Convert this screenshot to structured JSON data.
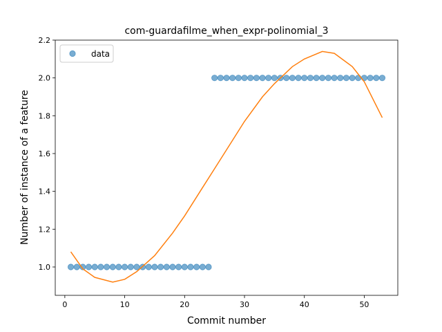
{
  "chart_data": {
    "type": "scatter",
    "title": "com-guardafilme_when_expr-polinomial_3",
    "xlabel": "Commit number",
    "ylabel": "Number of instance of a feature",
    "xlim": [
      -1.6,
      55.6
    ],
    "ylim": [
      0.85,
      2.2
    ],
    "xticks": [
      0,
      10,
      20,
      30,
      40,
      50
    ],
    "yticks": [
      1.0,
      1.2,
      1.4,
      1.6,
      1.8,
      2.0,
      2.2
    ],
    "xtick_labels": [
      "0",
      "10",
      "20",
      "30",
      "40",
      "50"
    ],
    "ytick_labels": [
      "1.0",
      "1.2",
      "1.4",
      "1.6",
      "1.8",
      "2.0",
      "2.2"
    ],
    "grid": false,
    "legend": {
      "placement": "top-left",
      "entries": [
        "data"
      ]
    },
    "series": [
      {
        "name": "data",
        "kind": "scatter",
        "color": "#1f77b4",
        "x": [
          1,
          2,
          3,
          4,
          5,
          6,
          7,
          8,
          9,
          10,
          11,
          12,
          13,
          14,
          15,
          16,
          17,
          18,
          19,
          20,
          21,
          22,
          23,
          24,
          25,
          26,
          27,
          28,
          29,
          30,
          31,
          32,
          33,
          34,
          35,
          36,
          37,
          38,
          39,
          40,
          41,
          42,
          43,
          44,
          45,
          46,
          47,
          48,
          49,
          50,
          51,
          52,
          53
        ],
        "y": [
          1,
          1,
          1,
          1,
          1,
          1,
          1,
          1,
          1,
          1,
          1,
          1,
          1,
          1,
          1,
          1,
          1,
          1,
          1,
          1,
          1,
          1,
          1,
          1,
          2,
          2,
          2,
          2,
          2,
          2,
          2,
          2,
          2,
          2,
          2,
          2,
          2,
          2,
          2,
          2,
          2,
          2,
          2,
          2,
          2,
          2,
          2,
          2,
          2,
          2,
          2,
          2,
          2
        ]
      },
      {
        "kind": "line",
        "color": "#ff7f0e",
        "x": [
          1,
          3,
          5,
          8,
          10,
          12,
          15,
          18,
          20,
          23,
          25,
          28,
          30,
          33,
          35,
          38,
          40,
          43,
          45,
          48,
          50,
          53
        ],
        "y": [
          1.08,
          0.99,
          0.945,
          0.92,
          0.935,
          0.975,
          1.06,
          1.18,
          1.27,
          1.42,
          1.52,
          1.67,
          1.77,
          1.9,
          1.97,
          2.06,
          2.1,
          2.14,
          2.13,
          2.06,
          1.98,
          1.79
        ]
      }
    ]
  }
}
